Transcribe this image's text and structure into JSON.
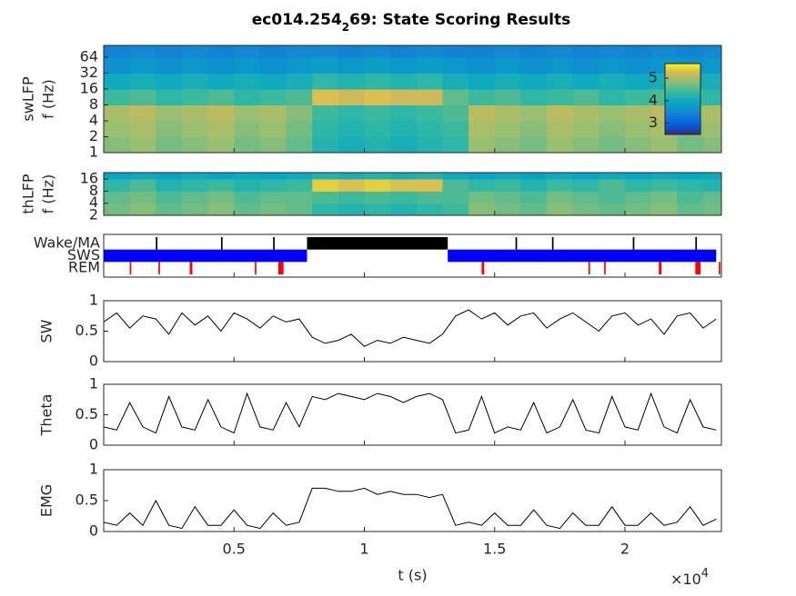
{
  "title_parts": [
    "ec014.254",
    "2",
    "69: State Scoring Results"
  ],
  "chart_data": [
    {
      "type": "heatmap",
      "ylabel": [
        "swLFP",
        "f (Hz)"
      ],
      "xlim": [
        0,
        23700
      ],
      "ylim": [
        1,
        107
      ],
      "log_y": true,
      "yticks": [
        1,
        2,
        4,
        8,
        16,
        32,
        64
      ],
      "t_edges": [
        0,
        1000,
        2000,
        3000,
        4000,
        5000,
        6000,
        7000,
        8000,
        9000,
        10000,
        11000,
        12000,
        13000,
        14000,
        15000,
        16000,
        17000,
        18000,
        19000,
        20000,
        21000,
        22000,
        23000,
        24000
      ],
      "f_edges": [
        1,
        2,
        4,
        8,
        16,
        32,
        64,
        107
      ],
      "z": [
        [
          4.8,
          4.9,
          4.7,
          4.8,
          4.9,
          4.7,
          4.8,
          4.6,
          4.2,
          4.1,
          4.2,
          4.1,
          4.2,
          4.3,
          4.9,
          4.8,
          4.7,
          4.9,
          4.8,
          4.7,
          4.8,
          4.9,
          4.7,
          4.8
        ],
        [
          4.9,
          5.0,
          4.8,
          4.9,
          5.0,
          4.8,
          4.9,
          4.7,
          4.3,
          4.2,
          4.3,
          4.2,
          4.3,
          4.4,
          5.0,
          4.9,
          4.8,
          5.0,
          4.9,
          4.8,
          4.9,
          5.0,
          4.8,
          4.9
        ],
        [
          5.0,
          5.1,
          4.9,
          5.0,
          5.1,
          4.9,
          5.0,
          4.8,
          4.4,
          4.3,
          4.4,
          4.3,
          4.4,
          4.5,
          5.1,
          5.0,
          4.9,
          5.1,
          5.0,
          4.9,
          5.0,
          5.1,
          4.9,
          5.0
        ],
        [
          4.4,
          4.5,
          4.3,
          4.4,
          4.5,
          4.3,
          4.4,
          4.5,
          5.3,
          5.2,
          5.3,
          5.2,
          5.2,
          4.6,
          4.4,
          4.5,
          4.3,
          4.4,
          4.5,
          4.3,
          4.4,
          4.5,
          4.4,
          4.3
        ],
        [
          4.0,
          4.1,
          4.0,
          4.1,
          4.0,
          4.1,
          4.0,
          4.1,
          4.3,
          4.2,
          4.3,
          4.2,
          4.3,
          4.1,
          4.0,
          4.1,
          4.0,
          4.1,
          4.0,
          4.1,
          4.0,
          4.1,
          4.0,
          4.1
        ],
        [
          3.6,
          3.7,
          3.6,
          3.7,
          3.6,
          3.7,
          3.6,
          3.7,
          3.8,
          3.7,
          3.8,
          3.7,
          3.8,
          3.7,
          3.6,
          3.7,
          3.6,
          3.7,
          3.6,
          3.7,
          3.6,
          3.7,
          3.6,
          3.7
        ],
        [
          3.4,
          3.5,
          3.4,
          3.5,
          3.4,
          3.5,
          3.4,
          3.5,
          3.5,
          3.4,
          3.5,
          3.4,
          3.5,
          3.4,
          3.4,
          3.5,
          3.4,
          3.5,
          3.4,
          3.5,
          3.4,
          3.5,
          3.4,
          3.5
        ]
      ],
      "clim": [
        2.5,
        5.65
      ],
      "colorbar": {
        "ticks": [
          3,
          4,
          5
        ]
      }
    },
    {
      "type": "heatmap",
      "ylabel": [
        "thLFP",
        "f (Hz)"
      ],
      "xlim": [
        0,
        23700
      ],
      "ylim": [
        2,
        23
      ],
      "log_y": true,
      "yticks": [
        2,
        4,
        8,
        16
      ],
      "t_edges": [
        0,
        1000,
        2000,
        3000,
        4000,
        5000,
        6000,
        7000,
        8000,
        9000,
        10000,
        11000,
        12000,
        13000,
        14000,
        15000,
        16000,
        17000,
        18000,
        19000,
        20000,
        21000,
        22000,
        23000,
        24000
      ],
      "f_edges": [
        2,
        4,
        8,
        16,
        23
      ],
      "z": [
        [
          4.7,
          4.8,
          4.6,
          4.7,
          4.8,
          4.6,
          4.7,
          4.6,
          4.3,
          4.2,
          4.3,
          4.2,
          4.3,
          4.4,
          4.8,
          4.7,
          4.6,
          4.8,
          4.7,
          4.6,
          4.7,
          4.8,
          4.6,
          4.7
        ],
        [
          4.6,
          4.7,
          4.5,
          4.6,
          4.7,
          4.5,
          4.6,
          4.6,
          4.5,
          4.4,
          4.5,
          4.4,
          4.5,
          4.5,
          4.7,
          4.6,
          4.5,
          4.7,
          4.6,
          4.5,
          4.6,
          4.7,
          4.5,
          4.6
        ],
        [
          4.3,
          4.5,
          4.2,
          4.3,
          4.4,
          4.2,
          4.3,
          4.4,
          5.4,
          5.3,
          5.4,
          5.3,
          5.3,
          4.5,
          4.3,
          4.4,
          4.2,
          4.4,
          4.3,
          4.5,
          4.3,
          4.4,
          4.3,
          4.2
        ],
        [
          3.9,
          4.0,
          3.9,
          4.0,
          3.9,
          4.0,
          3.9,
          4.0,
          4.2,
          4.1,
          4.2,
          4.1,
          4.2,
          4.0,
          3.9,
          4.0,
          3.9,
          4.0,
          3.9,
          4.0,
          3.9,
          4.0,
          3.9,
          4.0
        ]
      ],
      "clim": [
        2.5,
        5.65
      ]
    },
    {
      "type": "state",
      "xlim": [
        0,
        23700
      ],
      "categories": [
        "REM",
        "SWS",
        "Wake/MA"
      ],
      "series": [
        {
          "color": "#ff0000",
          "intervals": [
            [
              1000,
              1060
            ],
            [
              2100,
              2160
            ],
            [
              3300,
              3400
            ],
            [
              5800,
              5860
            ],
            [
              6700,
              6900
            ],
            [
              14500,
              14600
            ],
            [
              18600,
              18660
            ],
            [
              19200,
              19260
            ],
            [
              21300,
              21400
            ],
            [
              22700,
              22900
            ],
            [
              23600,
              23660
            ]
          ]
        },
        {
          "color": "#0000ff",
          "intervals": [
            [
              0,
              7800
            ],
            [
              13200,
              23500
            ]
          ]
        },
        {
          "color": "#000000",
          "intervals": [
            [
              2000,
              2060
            ],
            [
              4500,
              4560
            ],
            [
              6500,
              6560
            ],
            [
              7800,
              13200
            ],
            [
              15800,
              15860
            ],
            [
              17200,
              17260
            ],
            [
              20300,
              20360
            ],
            [
              22700,
              22760
            ]
          ]
        }
      ]
    },
    {
      "type": "line",
      "ylabel": "SW",
      "xlim": [
        0,
        23700
      ],
      "ylim": [
        0,
        1
      ],
      "yticks": [
        0,
        0.5,
        1
      ],
      "color": "#000000",
      "x": [
        0,
        500,
        1000,
        1500,
        2000,
        2500,
        3000,
        3500,
        4000,
        4500,
        5000,
        5500,
        6000,
        6500,
        7000,
        7500,
        8000,
        8500,
        9000,
        9500,
        10000,
        10500,
        11000,
        11500,
        12000,
        12500,
        13000,
        13500,
        14000,
        14500,
        15000,
        15500,
        16000,
        16500,
        17000,
        17500,
        18000,
        18500,
        19000,
        19500,
        20000,
        20500,
        21000,
        21500,
        22000,
        22500,
        23000,
        23500
      ],
      "values": [
        0.65,
        0.8,
        0.55,
        0.75,
        0.7,
        0.45,
        0.8,
        0.6,
        0.75,
        0.5,
        0.8,
        0.7,
        0.55,
        0.75,
        0.65,
        0.7,
        0.4,
        0.3,
        0.35,
        0.45,
        0.25,
        0.35,
        0.3,
        0.4,
        0.35,
        0.3,
        0.45,
        0.75,
        0.85,
        0.7,
        0.8,
        0.6,
        0.75,
        0.8,
        0.55,
        0.7,
        0.8,
        0.65,
        0.5,
        0.75,
        0.8,
        0.6,
        0.7,
        0.45,
        0.75,
        0.8,
        0.55,
        0.7
      ]
    },
    {
      "type": "line",
      "ylabel": "Theta",
      "xlim": [
        0,
        23700
      ],
      "ylim": [
        0,
        1
      ],
      "yticks": [
        0,
        0.5,
        1
      ],
      "color": "#000000",
      "x": [
        0,
        500,
        1000,
        1500,
        2000,
        2500,
        3000,
        3500,
        4000,
        4500,
        5000,
        5500,
        6000,
        6500,
        7000,
        7500,
        8000,
        8500,
        9000,
        9500,
        10000,
        10500,
        11000,
        11500,
        12000,
        12500,
        13000,
        13500,
        14000,
        14500,
        15000,
        15500,
        16000,
        16500,
        17000,
        17500,
        18000,
        18500,
        19000,
        19500,
        20000,
        20500,
        21000,
        21500,
        22000,
        22500,
        23000,
        23500
      ],
      "values": [
        0.3,
        0.25,
        0.7,
        0.3,
        0.2,
        0.8,
        0.3,
        0.25,
        0.75,
        0.3,
        0.2,
        0.85,
        0.3,
        0.25,
        0.7,
        0.3,
        0.8,
        0.75,
        0.85,
        0.8,
        0.75,
        0.85,
        0.8,
        0.7,
        0.8,
        0.85,
        0.75,
        0.2,
        0.25,
        0.8,
        0.2,
        0.3,
        0.25,
        0.7,
        0.2,
        0.3,
        0.75,
        0.25,
        0.2,
        0.8,
        0.3,
        0.25,
        0.85,
        0.3,
        0.2,
        0.75,
        0.3,
        0.25
      ]
    },
    {
      "type": "line",
      "ylabel": "EMG",
      "xlabel": "t (s)",
      "x_exponent": [
        "×10",
        "4"
      ],
      "xlim": [
        0,
        23700
      ],
      "ylim": [
        0,
        1
      ],
      "yticks": [
        0,
        0.5,
        1
      ],
      "color": "#000000",
      "xticks": [
        {
          "value": 5000,
          "label": "0.5"
        },
        {
          "value": 10000,
          "label": "1"
        },
        {
          "value": 15000,
          "label": "1.5"
        },
        {
          "value": 20000,
          "label": "2"
        }
      ],
      "x": [
        0,
        500,
        1000,
        1500,
        2000,
        2500,
        3000,
        3500,
        4000,
        4500,
        5000,
        5500,
        6000,
        6500,
        7000,
        7500,
        8000,
        8500,
        9000,
        9500,
        10000,
        10500,
        11000,
        11500,
        12000,
        12500,
        13000,
        13500,
        14000,
        14500,
        15000,
        15500,
        16000,
        16500,
        17000,
        17500,
        18000,
        18500,
        19000,
        19500,
        20000,
        20500,
        21000,
        21500,
        22000,
        22500,
        23000,
        23500
      ],
      "values": [
        0.15,
        0.1,
        0.3,
        0.1,
        0.5,
        0.1,
        0.05,
        0.4,
        0.1,
        0.1,
        0.35,
        0.1,
        0.05,
        0.3,
        0.1,
        0.15,
        0.7,
        0.7,
        0.65,
        0.65,
        0.7,
        0.6,
        0.65,
        0.6,
        0.6,
        0.55,
        0.6,
        0.1,
        0.15,
        0.1,
        0.3,
        0.1,
        0.1,
        0.35,
        0.1,
        0.05,
        0.3,
        0.1,
        0.1,
        0.4,
        0.1,
        0.1,
        0.3,
        0.1,
        0.15,
        0.4,
        0.1,
        0.2
      ]
    }
  ]
}
